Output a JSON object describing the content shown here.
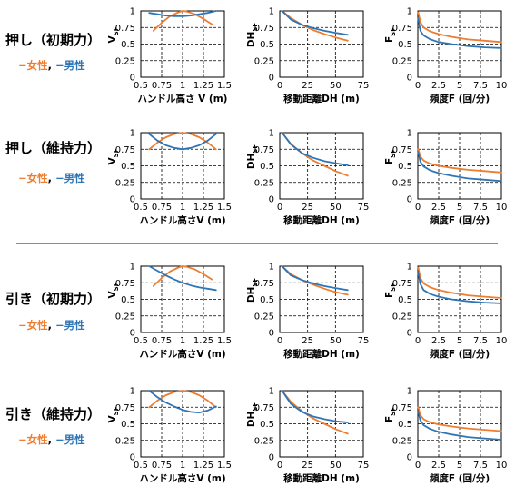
{
  "colors": {
    "female": "#ED7D31",
    "male": "#2E75B6"
  },
  "legend": {
    "female_label": "−女性",
    "separator": ", ",
    "male_label": "−男性"
  },
  "rows": [
    {
      "title": "押し（初期力）"
    },
    {
      "title": "押し（維持力）"
    },
    {
      "title": "引き（初期力）"
    },
    {
      "title": "引き（維持力）"
    }
  ],
  "chart_data": [
    {
      "row": 0,
      "col": 0,
      "type": "line",
      "xlabel": "ハンドル高さ V (m)",
      "ylabel": "V",
      "ylabel_sub": "SF",
      "xlim": [
        0.5,
        1.5
      ],
      "ylim": [
        0,
        1
      ],
      "xticks": [
        "0.5",
        "0.75",
        "1",
        "1.25",
        "1.5"
      ],
      "yticks": [
        "0",
        "0.25",
        "0.5",
        "0.75",
        "1"
      ],
      "grid": true,
      "series": [
        {
          "key": "female",
          "x": [
            0.65,
            0.75,
            0.85,
            0.95,
            1.0,
            1.05,
            1.15,
            1.25,
            1.35
          ],
          "y": [
            0.7,
            0.82,
            0.92,
            0.98,
            1.0,
            0.99,
            0.95,
            0.88,
            0.8
          ]
        },
        {
          "key": "male",
          "x": [
            0.6,
            0.7,
            0.8,
            0.9,
            1.0,
            1.1,
            1.2,
            1.3,
            1.4
          ],
          "y": [
            0.97,
            0.95,
            0.93,
            0.92,
            0.92,
            0.93,
            0.95,
            0.97,
            1.0
          ]
        }
      ]
    },
    {
      "row": 0,
      "col": 1,
      "type": "line",
      "xlabel": "移動距離DH (m)",
      "ylabel": "DH",
      "ylabel_sub": "SF",
      "xlim": [
        0,
        75
      ],
      "ylim": [
        0,
        1
      ],
      "xticks": [
        "0",
        "25",
        "50",
        "75"
      ],
      "yticks": [
        "0",
        "0.25",
        "0.5",
        "0.75",
        "1"
      ],
      "grid": true,
      "series": [
        {
          "key": "female",
          "x": [
            2,
            10,
            20,
            30,
            40,
            50,
            61
          ],
          "y": [
            1.0,
            0.89,
            0.79,
            0.71,
            0.65,
            0.6,
            0.55
          ]
        },
        {
          "key": "male",
          "x": [
            2,
            10,
            20,
            30,
            40,
            50,
            61
          ],
          "y": [
            1.0,
            0.87,
            0.79,
            0.74,
            0.7,
            0.67,
            0.64
          ]
        }
      ]
    },
    {
      "row": 0,
      "col": 2,
      "type": "line",
      "xlabel": "頻度F (回/分)",
      "ylabel": "F",
      "ylabel_sub": "SF",
      "xlim": [
        0,
        10
      ],
      "ylim": [
        0,
        1
      ],
      "xticks": [
        "0",
        "2.5",
        "5",
        "7.5",
        "10"
      ],
      "yticks": [
        "0",
        "0.25",
        "0.5",
        "0.75",
        "1"
      ],
      "grid": true,
      "series": [
        {
          "key": "female",
          "x": [
            0.05,
            0.3,
            0.7,
            1.5,
            2.5,
            4,
            6,
            8,
            10
          ],
          "y": [
            0.98,
            0.83,
            0.75,
            0.69,
            0.65,
            0.61,
            0.57,
            0.55,
            0.53
          ]
        },
        {
          "key": "male",
          "x": [
            0.05,
            0.3,
            0.7,
            1.5,
            2.5,
            4,
            6,
            8,
            10
          ],
          "y": [
            0.88,
            0.7,
            0.63,
            0.57,
            0.53,
            0.5,
            0.47,
            0.45,
            0.44
          ]
        }
      ]
    },
    {
      "row": 1,
      "col": 0,
      "type": "line",
      "xlabel": "ハンドル高さV (m)",
      "ylabel": "V",
      "ylabel_sub": "SF",
      "xlim": [
        0.5,
        1.5
      ],
      "ylim": [
        0,
        1
      ],
      "xticks": [
        "0.5",
        "0.75",
        "1",
        "1.25",
        "1.5"
      ],
      "yticks": [
        "0",
        "0.25",
        "0.5",
        "0.75",
        "1"
      ],
      "grid": true,
      "series": [
        {
          "key": "female",
          "x": [
            0.6,
            0.7,
            0.8,
            0.9,
            1.0,
            1.1,
            1.2,
            1.3,
            1.4
          ],
          "y": [
            0.75,
            0.85,
            0.93,
            0.98,
            1.0,
            0.98,
            0.93,
            0.85,
            0.75
          ]
        },
        {
          "key": "male",
          "x": [
            0.6,
            0.7,
            0.8,
            0.9,
            1.0,
            1.1,
            1.2,
            1.3,
            1.4
          ],
          "y": [
            0.98,
            0.88,
            0.81,
            0.77,
            0.75,
            0.77,
            0.81,
            0.88,
            0.98
          ]
        }
      ]
    },
    {
      "row": 1,
      "col": 1,
      "type": "line",
      "xlabel": "移動距離DH (m)",
      "ylabel": "DH",
      "ylabel_sub": "SF",
      "xlim": [
        0,
        75
      ],
      "ylim": [
        0,
        1
      ],
      "xticks": [
        "0",
        "25",
        "50",
        "75"
      ],
      "yticks": [
        "0",
        "0.25",
        "0.5",
        "0.75",
        "1"
      ],
      "grid": true,
      "series": [
        {
          "key": "female",
          "x": [
            2,
            10,
            20,
            30,
            40,
            50,
            61
          ],
          "y": [
            1.0,
            0.83,
            0.69,
            0.58,
            0.5,
            0.42,
            0.35
          ]
        },
        {
          "key": "male",
          "x": [
            2,
            10,
            20,
            30,
            40,
            50,
            61
          ],
          "y": [
            1.0,
            0.82,
            0.69,
            0.62,
            0.57,
            0.54,
            0.51
          ]
        }
      ]
    },
    {
      "row": 1,
      "col": 2,
      "type": "line",
      "xlabel": "頻度F (回/分)",
      "ylabel": "F",
      "ylabel_sub": "SF",
      "xlim": [
        0,
        10
      ],
      "ylim": [
        0,
        1
      ],
      "xticks": [
        "0",
        "2.5",
        "5",
        "7.5",
        "10"
      ],
      "yticks": [
        "0",
        "0.25",
        "0.5",
        "0.75",
        "1"
      ],
      "grid": true,
      "series": [
        {
          "key": "female",
          "x": [
            0.05,
            0.3,
            0.7,
            1.5,
            2.5,
            4,
            6,
            8,
            10
          ],
          "y": [
            0.75,
            0.64,
            0.58,
            0.53,
            0.5,
            0.47,
            0.44,
            0.42,
            0.4
          ]
        },
        {
          "key": "male",
          "x": [
            0.05,
            0.3,
            0.7,
            1.5,
            2.5,
            4,
            6,
            8,
            10
          ],
          "y": [
            0.7,
            0.56,
            0.49,
            0.43,
            0.39,
            0.35,
            0.31,
            0.29,
            0.27
          ]
        }
      ]
    },
    {
      "row": 2,
      "col": 0,
      "type": "line",
      "xlabel": "ハンドル高さV (m)",
      "ylabel": "V",
      "ylabel_sub": "SF",
      "xlim": [
        0.5,
        1.5
      ],
      "ylim": [
        0,
        1
      ],
      "xticks": [
        "0.5",
        "0.75",
        "1",
        "1.25",
        "1.5"
      ],
      "yticks": [
        "0",
        "0.25",
        "0.5",
        "0.75",
        "1"
      ],
      "grid": true,
      "series": [
        {
          "key": "female",
          "x": [
            0.65,
            0.75,
            0.85,
            0.95,
            1.0,
            1.05,
            1.15,
            1.25,
            1.35
          ],
          "y": [
            0.7,
            0.82,
            0.92,
            0.98,
            1.0,
            0.99,
            0.95,
            0.88,
            0.8
          ]
        },
        {
          "key": "male",
          "x": [
            0.6,
            0.7,
            0.8,
            0.9,
            1.0,
            1.1,
            1.2,
            1.3,
            1.4
          ],
          "y": [
            1.0,
            0.93,
            0.86,
            0.8,
            0.75,
            0.71,
            0.68,
            0.66,
            0.64
          ]
        }
      ]
    },
    {
      "row": 2,
      "col": 1,
      "type": "line",
      "xlabel": "移動距離DH (m)",
      "ylabel": "DH",
      "ylabel_sub": "SF",
      "xlim": [
        0,
        75
      ],
      "ylim": [
        0,
        1
      ],
      "xticks": [
        "0",
        "25",
        "50",
        "75"
      ],
      "yticks": [
        "0",
        "0.25",
        "0.5",
        "0.75",
        "1"
      ],
      "grid": true,
      "series": [
        {
          "key": "female",
          "x": [
            2,
            10,
            20,
            30,
            40,
            50,
            61
          ],
          "y": [
            1.0,
            0.88,
            0.79,
            0.72,
            0.66,
            0.61,
            0.57
          ]
        },
        {
          "key": "male",
          "x": [
            2,
            10,
            20,
            30,
            40,
            50,
            61
          ],
          "y": [
            1.0,
            0.86,
            0.79,
            0.74,
            0.7,
            0.67,
            0.64
          ]
        }
      ]
    },
    {
      "row": 2,
      "col": 2,
      "type": "line",
      "xlabel": "頻度F (回/分)",
      "ylabel": "F",
      "ylabel_sub": "SF",
      "xlim": [
        0,
        10
      ],
      "ylim": [
        0,
        1
      ],
      "xticks": [
        "0",
        "2.5",
        "5",
        "7.5",
        "10"
      ],
      "yticks": [
        "0",
        "0.25",
        "0.5",
        "0.75",
        "1"
      ],
      "grid": true,
      "series": [
        {
          "key": "female",
          "x": [
            0.05,
            0.3,
            0.7,
            1.5,
            2.5,
            4,
            6,
            8,
            10
          ],
          "y": [
            0.98,
            0.82,
            0.74,
            0.68,
            0.64,
            0.6,
            0.56,
            0.54,
            0.52
          ]
        },
        {
          "key": "male",
          "x": [
            0.05,
            0.3,
            0.7,
            1.5,
            2.5,
            4,
            6,
            8,
            10
          ],
          "y": [
            0.9,
            0.73,
            0.64,
            0.58,
            0.54,
            0.5,
            0.47,
            0.45,
            0.44
          ]
        }
      ]
    },
    {
      "row": 3,
      "col": 0,
      "type": "line",
      "xlabel": "ハンドル高さV (m)",
      "ylabel": "V",
      "ylabel_sub": "SF",
      "xlim": [
        0.5,
        1.5
      ],
      "ylim": [
        0,
        1
      ],
      "xticks": [
        "0.5",
        "0.75",
        "1",
        "1.25",
        "1.5"
      ],
      "yticks": [
        "0",
        "0.25",
        "0.5",
        "0.75",
        "1"
      ],
      "grid": true,
      "series": [
        {
          "key": "female",
          "x": [
            0.6,
            0.7,
            0.8,
            0.9,
            1.0,
            1.1,
            1.2,
            1.3,
            1.4
          ],
          "y": [
            0.75,
            0.85,
            0.93,
            0.98,
            1.0,
            0.98,
            0.93,
            0.85,
            0.75
          ]
        },
        {
          "key": "male",
          "x": [
            0.6,
            0.7,
            0.8,
            0.9,
            1.0,
            1.1,
            1.2,
            1.3,
            1.4
          ],
          "y": [
            1.0,
            0.9,
            0.82,
            0.76,
            0.71,
            0.68,
            0.67,
            0.7,
            0.76
          ]
        }
      ]
    },
    {
      "row": 3,
      "col": 1,
      "type": "line",
      "xlabel": "移動距離DH (m)",
      "ylabel": "DH",
      "ylabel_sub": "SF",
      "xlim": [
        0,
        75
      ],
      "ylim": [
        0,
        1
      ],
      "xticks": [
        "0",
        "25",
        "50",
        "75"
      ],
      "yticks": [
        "0",
        "0.25",
        "0.5",
        "0.75",
        "1"
      ],
      "grid": true,
      "series": [
        {
          "key": "female",
          "x": [
            2,
            10,
            20,
            30,
            40,
            50,
            61
          ],
          "y": [
            1.0,
            0.83,
            0.69,
            0.58,
            0.5,
            0.42,
            0.35
          ]
        },
        {
          "key": "male",
          "x": [
            2,
            10,
            20,
            30,
            40,
            50,
            61
          ],
          "y": [
            1.0,
            0.8,
            0.68,
            0.61,
            0.57,
            0.54,
            0.52
          ]
        }
      ]
    },
    {
      "row": 3,
      "col": 2,
      "type": "line",
      "xlabel": "頻度F (回/分)",
      "ylabel": "F",
      "ylabel_sub": "SF",
      "xlim": [
        0,
        10
      ],
      "ylim": [
        0,
        1
      ],
      "xticks": [
        "0",
        "2.5",
        "5",
        "7.5",
        "10"
      ],
      "yticks": [
        "0",
        "0.25",
        "0.5",
        "0.75",
        "1"
      ],
      "grid": true,
      "series": [
        {
          "key": "female",
          "x": [
            0.05,
            0.3,
            0.7,
            1.5,
            2.5,
            4,
            6,
            8,
            10
          ],
          "y": [
            0.75,
            0.63,
            0.57,
            0.52,
            0.49,
            0.46,
            0.43,
            0.41,
            0.39
          ]
        },
        {
          "key": "male",
          "x": [
            0.05,
            0.3,
            0.7,
            1.5,
            2.5,
            4,
            6,
            8,
            10
          ],
          "y": [
            0.68,
            0.55,
            0.48,
            0.42,
            0.38,
            0.34,
            0.3,
            0.28,
            0.26
          ]
        }
      ]
    }
  ]
}
